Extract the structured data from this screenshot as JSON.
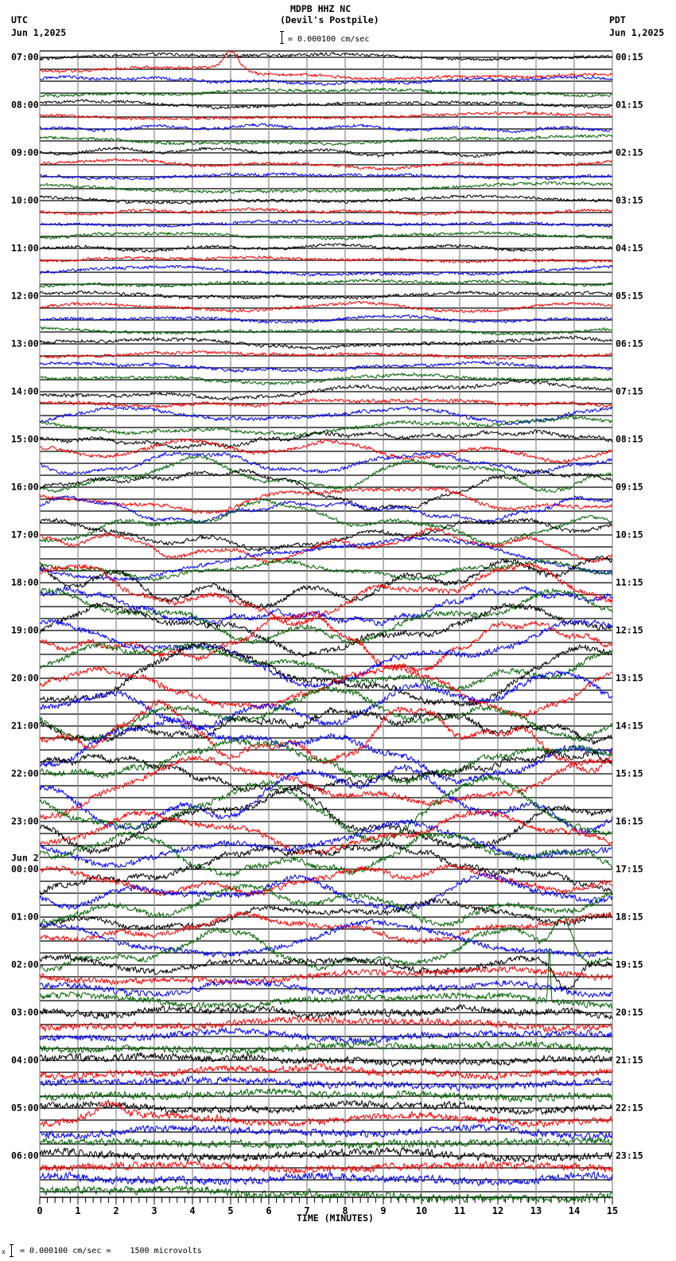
{
  "header": {
    "title": "MDPB HHZ NC",
    "subtitle": "(Devil's Postpile)",
    "scale_text": "= 0.000100 cm/sec",
    "left_tz": "UTC",
    "left_date": "Jun 1,2025",
    "right_tz": "PDT",
    "right_date": "Jun 1,2025"
  },
  "footer": {
    "marker": "x",
    "caption": "= 0.000100 cm/sec =    1500 microvolts"
  },
  "chart_data": {
    "type": "line",
    "title": "MDPB HHZ NC",
    "subtitle": "(Devil's Postpile)",
    "xlabel": "TIME (MINUTES)",
    "ylabel_left": "UTC",
    "ylabel_right": "PDT",
    "xlim": [
      0,
      15
    ],
    "x_ticks": [
      "0",
      "1",
      "2",
      "3",
      "4",
      "5",
      "6",
      "7",
      "8",
      "9",
      "10",
      "11",
      "12",
      "13",
      "14",
      "15"
    ],
    "minor_ticks_per_minute": 5,
    "grid": true,
    "trace_colors": {
      "black": "#000000",
      "red": "#ff0000",
      "blue": "#0000ff",
      "green": "#006400"
    },
    "trace_order": [
      "black",
      "red",
      "blue",
      "green"
    ],
    "traces_per_row": 4,
    "scale": "0.000100 cm/sec = 1500 microvolts",
    "rows": [
      {
        "utc": "07:00",
        "pdt": "00:15",
        "noise": 2.0,
        "swing": 4
      },
      {
        "utc": "08:00",
        "pdt": "01:15",
        "noise": 2.0,
        "swing": 4
      },
      {
        "utc": "09:00",
        "pdt": "02:15",
        "noise": 2.0,
        "swing": 5
      },
      {
        "utc": "10:00",
        "pdt": "03:15",
        "noise": 2.0,
        "swing": 4
      },
      {
        "utc": "11:00",
        "pdt": "04:15",
        "noise": 2.0,
        "swing": 4
      },
      {
        "utc": "12:00",
        "pdt": "05:15",
        "noise": 2.0,
        "swing": 4
      },
      {
        "utc": "13:00",
        "pdt": "06:15",
        "noise": 2.2,
        "swing": 5
      },
      {
        "utc": "14:00",
        "pdt": "07:15",
        "noise": 2.4,
        "swing": 7
      },
      {
        "utc": "15:00",
        "pdt": "08:15",
        "noise": 2.5,
        "swing": 15
      },
      {
        "utc": "16:00",
        "pdt": "09:15",
        "noise": 2.5,
        "swing": 19
      },
      {
        "utc": "17:00",
        "pdt": "10:15",
        "noise": 2.6,
        "swing": 21
      },
      {
        "utc": "18:00",
        "pdt": "11:15",
        "noise": 3.4,
        "swing": 25
      },
      {
        "utc": "19:00",
        "pdt": "12:15",
        "noise": 3.5,
        "swing": 28
      },
      {
        "utc": "20:00",
        "pdt": "13:15",
        "noise": 3.8,
        "swing": 28
      },
      {
        "utc": "21:00",
        "pdt": "14:15",
        "noise": 4.0,
        "swing": 30
      },
      {
        "utc": "22:00",
        "pdt": "15:15",
        "noise": 3.8,
        "swing": 28
      },
      {
        "utc": "23:00",
        "pdt": "16:15",
        "noise": 3.8,
        "swing": 26
      },
      {
        "utc": "00:00",
        "pdt": "17:15",
        "date_marker": "Jun 2",
        "noise": 3.8,
        "swing": 24
      },
      {
        "utc": "01:00",
        "pdt": "18:15",
        "noise": 3.5,
        "swing": 18
      },
      {
        "utc": "02:00",
        "pdt": "19:15",
        "noise": 4.0,
        "swing": 7
      },
      {
        "utc": "03:00",
        "pdt": "20:15",
        "noise": 4.4,
        "swing": 5
      },
      {
        "utc": "04:00",
        "pdt": "21:15",
        "noise": 4.5,
        "swing": 5
      },
      {
        "utc": "05:00",
        "pdt": "22:15",
        "noise": 4.6,
        "swing": 5
      },
      {
        "utc": "06:00",
        "pdt": "23:15",
        "noise": 5.0,
        "swing": 4
      }
    ],
    "events": [
      {
        "row": "07:00",
        "color": "red",
        "type": "step",
        "at_min": 5.5,
        "amp": 10,
        "width_min": 0.5
      },
      {
        "row": "07:00",
        "color": "red",
        "type": "bump",
        "at_min": 5.0,
        "amp": -22,
        "width_min": 0.25
      },
      {
        "row": "01:00",
        "color": "green",
        "type": "bump",
        "at_min": 13.7,
        "amp": -45,
        "width_min": 0.35
      },
      {
        "row": "02:00",
        "color": "green",
        "type": "bump",
        "at_min": 13.35,
        "amp": -70,
        "width_min": 0.04
      },
      {
        "row": "02:00",
        "color": "black",
        "type": "bump",
        "at_min": 13.8,
        "amp": 35,
        "width_min": 0.4
      },
      {
        "row": "06:00",
        "color": "green",
        "type": "step",
        "at_min": 7.2,
        "amp": 8,
        "width_min": 0.4
      },
      {
        "row": "05:00",
        "color": "red",
        "type": "bump",
        "at_min": 1.8,
        "amp": -18,
        "width_min": 0.5
      }
    ]
  }
}
